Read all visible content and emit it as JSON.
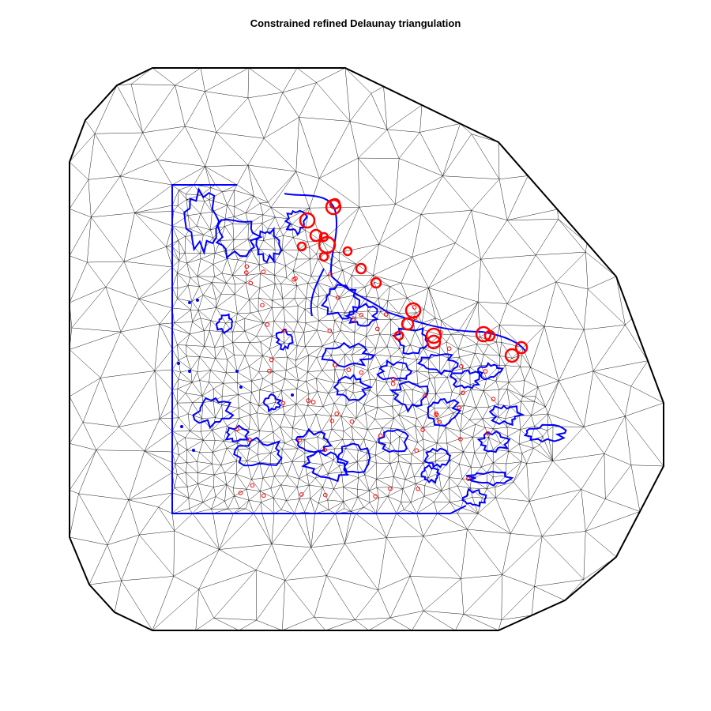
{
  "title": "Constrained refined Delaunay triangulation",
  "colors": {
    "background": "#ffffff",
    "mesh_edges": "#000000",
    "outer_boundary": "#000000",
    "constraint_boundary": "#0000ff",
    "island_outlines": "#0000ff",
    "station_markers": "#ff0000"
  },
  "legend": []
}
